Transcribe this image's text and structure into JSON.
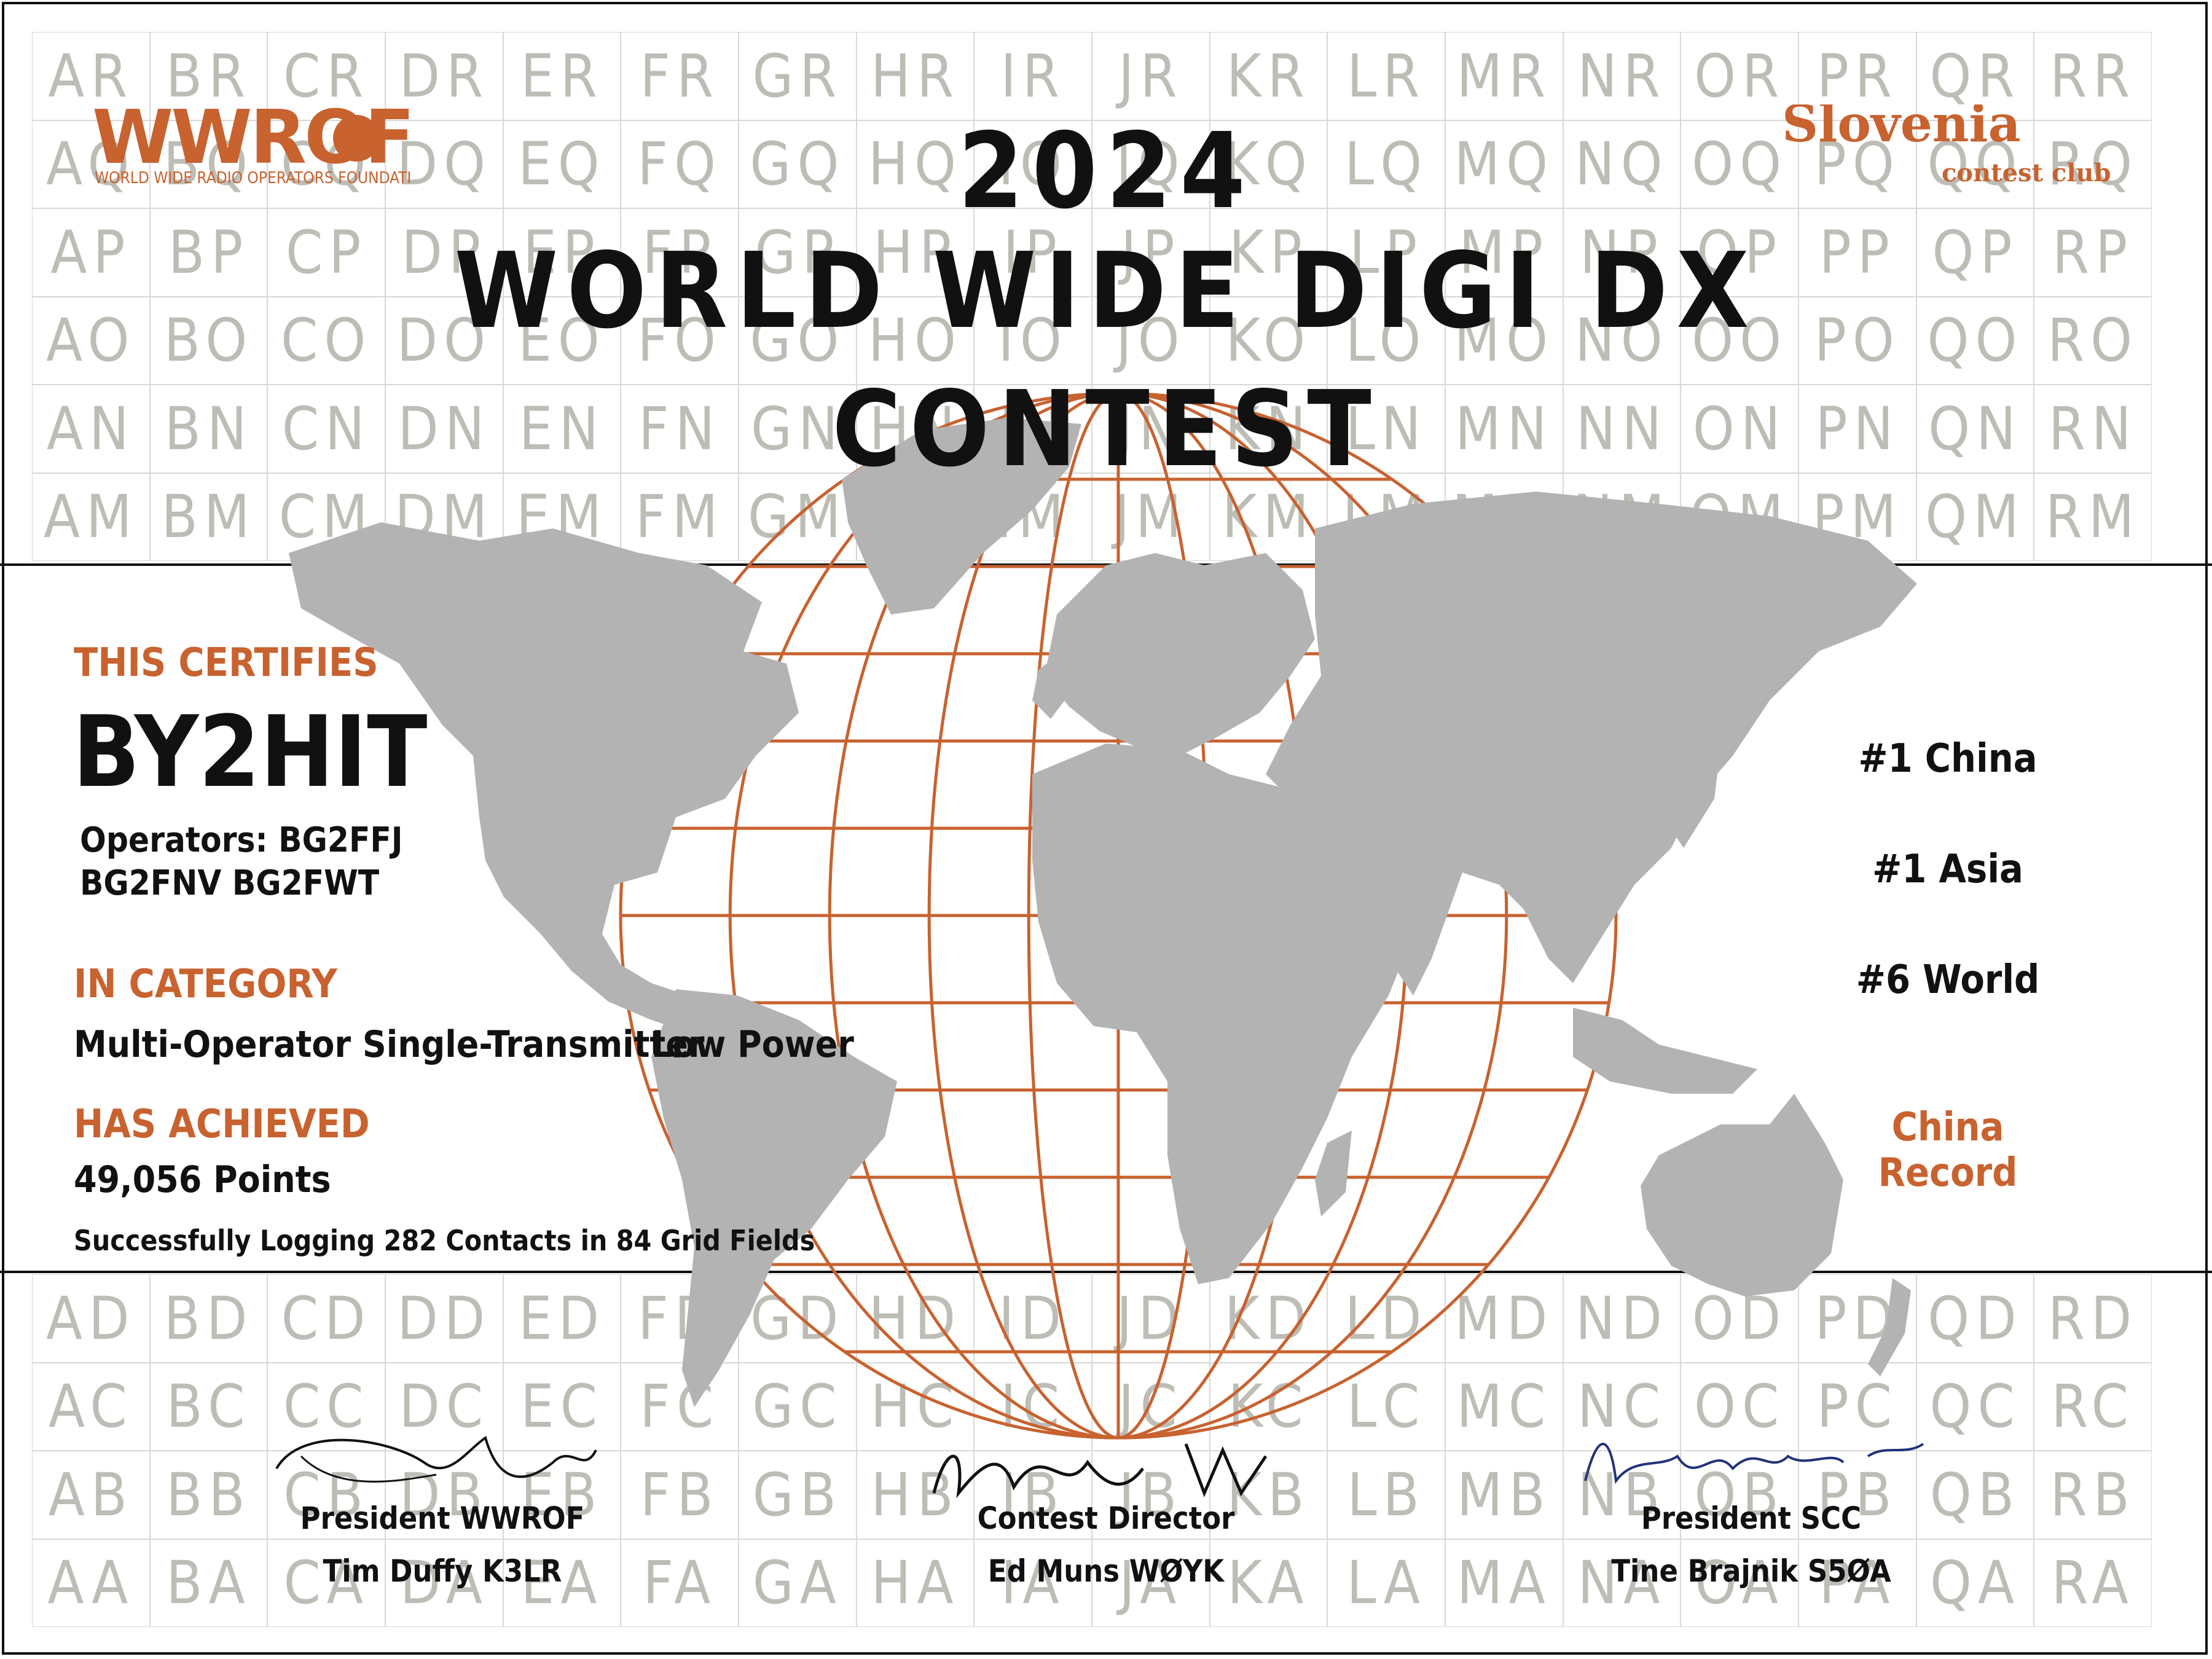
{
  "colors": {
    "accent": "#c8622f",
    "grid_text": "#bdbdb6",
    "land": "#b3b3b3",
    "ink": "#111111"
  },
  "logos": {
    "left": {
      "name": "WWROF",
      "tagline": "WORLD WIDE RADIO OPERATORS FOUNDATION"
    },
    "right": {
      "name": "Slovenia",
      "tagline": "contest club"
    }
  },
  "title": {
    "year": "2024",
    "line1": "WORLD WIDE DIGI DX",
    "line2": "CONTEST"
  },
  "certificate": {
    "certifies_label": "THIS CERTIFIES",
    "callsign": "BY2HIT",
    "operators_line1": "Operators: BG2FFJ",
    "operators_line2": "BG2FNV BG2FWT",
    "category_label": "IN CATEGORY",
    "category": "Multi-Operator Single-Transmitter",
    "power": "Low Power",
    "achieved_label": "HAS ACHIEVED",
    "points": "49,056 Points",
    "summary": "Successfully Logging 282 Contacts in 84 Grid Fields"
  },
  "placements": {
    "rank_country": "#1  China",
    "rank_continent": "#1 Asia",
    "rank_world": "#6 World",
    "record": "China Record"
  },
  "signatures": [
    {
      "role": "President WWROF",
      "name": "Tim Duffy K3LR",
      "signature": "Timothy J. Duffy"
    },
    {
      "role": "Contest Director",
      "name": "Ed Muns WØYK",
      "signature": "Ed Muns, WØYK"
    },
    {
      "role": "President SCC",
      "name": "Tine Brajnik S5ØA",
      "signature": "Brajnik Tine S5ØA"
    }
  ],
  "grid": {
    "columns": [
      "A",
      "B",
      "C",
      "D",
      "E",
      "F",
      "G",
      "H",
      "I",
      "J",
      "K",
      "L",
      "M",
      "N",
      "O",
      "P",
      "Q",
      "R"
    ],
    "top_rows": [
      "R",
      "Q",
      "P",
      "O",
      "N",
      "M"
    ],
    "bottom_rows": [
      "D",
      "C",
      "B",
      "A"
    ]
  }
}
